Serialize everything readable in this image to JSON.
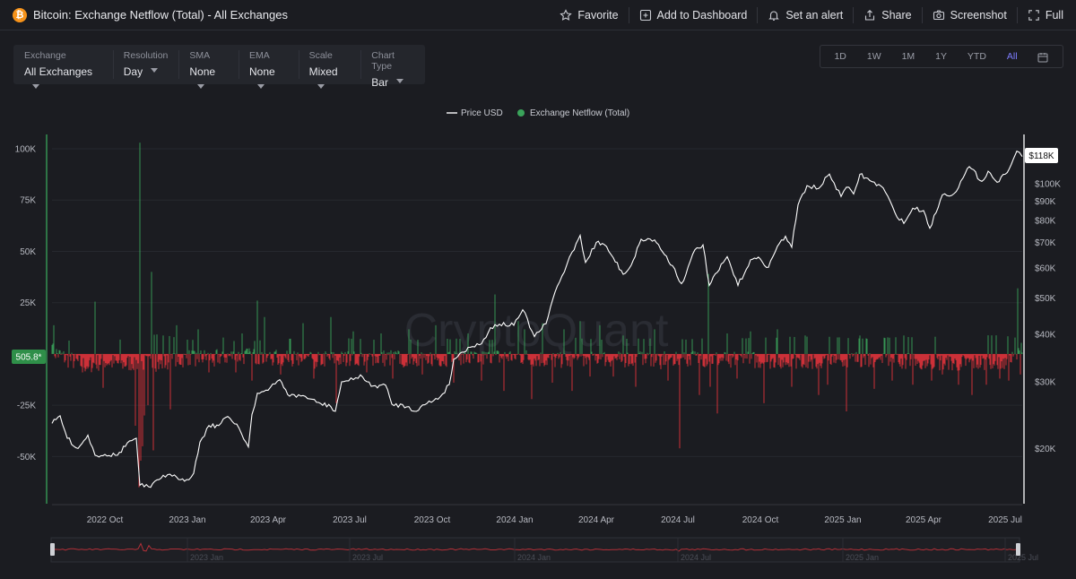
{
  "header": {
    "title": "Bitcoin: Exchange Netflow (Total) - All Exchanges",
    "coin_icon": "bitcoin-icon",
    "actions": [
      {
        "label": "Favorite",
        "icon": "star-icon"
      },
      {
        "label": "Add to Dashboard",
        "icon": "dashboard-add-icon"
      },
      {
        "label": "Set an alert",
        "icon": "bell-icon"
      },
      {
        "label": "Share",
        "icon": "share-icon"
      },
      {
        "label": "Screenshot",
        "icon": "camera-icon"
      },
      {
        "label": "Full",
        "icon": "fullscreen-icon"
      }
    ]
  },
  "filters": [
    {
      "label": "Exchange",
      "value": "All Exchanges"
    },
    {
      "label": "Resolution",
      "value": "Day"
    },
    {
      "label": "SMA",
      "value": "None"
    },
    {
      "label": "EMA",
      "value": "None"
    },
    {
      "label": "Scale",
      "value": "Mixed"
    },
    {
      "label": "Chart Type",
      "value": "Bar"
    }
  ],
  "ranges": {
    "items": [
      "1D",
      "1W",
      "1M",
      "1Y",
      "YTD",
      "All"
    ],
    "active": "All",
    "calendar_icon": "calendar-icon"
  },
  "colors": {
    "background": "#1b1c21",
    "price_line": "#ffffff",
    "inflow_bar": "#3aa35a",
    "outflow_bar": "#e0343b",
    "accent": "#7d7dff"
  },
  "chart_data": {
    "type": "bar",
    "legend": [
      {
        "name": "Price USD",
        "marker": "line",
        "color": "#ffffff"
      },
      {
        "name": "Exchange Netflow (Total)",
        "marker": "dot",
        "color": "#3aa35a"
      }
    ],
    "legend_position": "top-center",
    "watermark": "CryptoQuant",
    "x_ticks": [
      "2022 Oct",
      "2023 Jan",
      "2023 Apr",
      "2023 Jul",
      "2023 Oct",
      "2024 Jan",
      "2024 Apr",
      "2024 Jul",
      "2024 Oct",
      "2025 Jan",
      "2025 Apr",
      "2025 Jul"
    ],
    "x_range": [
      "2022-08-03",
      "2025-07-20"
    ],
    "left_axis": {
      "ticks": [
        100000,
        75000,
        50000,
        25000,
        -25000,
        -50000
      ],
      "tick_labels": [
        "100K",
        "75K",
        "50K",
        "25K",
        "-25K",
        "-50K"
      ],
      "range": [
        -73000,
        107000
      ]
    },
    "right_axis": {
      "scale": "log",
      "ticks": [
        100000,
        90000,
        80000,
        70000,
        60000,
        50000,
        40000,
        30000,
        20000
      ],
      "tick_labels": [
        "$100K",
        "$90K",
        "$80K",
        "$70K",
        "$60K",
        "$50K",
        "$40K",
        "$30K",
        "$20K"
      ],
      "range": [
        14300,
        135000
      ]
    },
    "last_values": {
      "netflow_label": "505.8*",
      "price_label": "$118K"
    },
    "series": [
      {
        "name": "Price USD",
        "axis": "right",
        "points": [
          [
            "2022-08-03",
            23300
          ],
          [
            "2022-08-12",
            24400
          ],
          [
            "2022-08-20",
            21300
          ],
          [
            "2022-09-01",
            20000
          ],
          [
            "2022-09-12",
            21700
          ],
          [
            "2022-09-20",
            19200
          ],
          [
            "2022-10-01",
            19300
          ],
          [
            "2022-10-15",
            19200
          ],
          [
            "2022-10-26",
            20700
          ],
          [
            "2022-11-05",
            21300
          ],
          [
            "2022-11-09",
            16000
          ],
          [
            "2022-11-21",
            15800
          ],
          [
            "2022-12-05",
            17000
          ],
          [
            "2022-12-20",
            16800
          ],
          [
            "2022-12-31",
            16550
          ],
          [
            "2023-01-08",
            17200
          ],
          [
            "2023-01-15",
            20800
          ],
          [
            "2023-01-25",
            23000
          ],
          [
            "2023-02-05",
            23000
          ],
          [
            "2023-02-15",
            24300
          ],
          [
            "2023-02-25",
            23200
          ],
          [
            "2023-03-10",
            20200
          ],
          [
            "2023-03-14",
            24600
          ],
          [
            "2023-03-20",
            28000
          ],
          [
            "2023-04-01",
            28500
          ],
          [
            "2023-04-14",
            30400
          ],
          [
            "2023-04-25",
            27500
          ],
          [
            "2023-05-10",
            27600
          ],
          [
            "2023-05-25",
            26500
          ],
          [
            "2023-06-10",
            25800
          ],
          [
            "2023-06-15",
            25100
          ],
          [
            "2023-06-22",
            30000
          ],
          [
            "2023-07-05",
            30400
          ],
          [
            "2023-07-13",
            31300
          ],
          [
            "2023-07-25",
            29200
          ],
          [
            "2023-08-10",
            29400
          ],
          [
            "2023-08-17",
            26200
          ],
          [
            "2023-09-05",
            25800
          ],
          [
            "2023-09-11",
            25100
          ],
          [
            "2023-09-25",
            26300
          ],
          [
            "2023-10-10",
            27400
          ],
          [
            "2023-10-20",
            29500
          ],
          [
            "2023-10-25",
            34400
          ],
          [
            "2023-11-10",
            37000
          ],
          [
            "2023-11-25",
            37800
          ],
          [
            "2023-12-05",
            41700
          ],
          [
            "2023-12-15",
            42600
          ],
          [
            "2023-12-31",
            42300
          ],
          [
            "2024-01-10",
            46500
          ],
          [
            "2024-01-23",
            39500
          ],
          [
            "2024-02-05",
            42700
          ],
          [
            "2024-02-15",
            51800
          ],
          [
            "2024-02-28",
            61000
          ],
          [
            "2024-03-05",
            66000
          ],
          [
            "2024-03-14",
            73100
          ],
          [
            "2024-03-20",
            62000
          ],
          [
            "2024-04-01",
            70000
          ],
          [
            "2024-04-10",
            69100
          ],
          [
            "2024-04-20",
            63800
          ],
          [
            "2024-05-01",
            57700
          ],
          [
            "2024-05-10",
            61000
          ],
          [
            "2024-05-21",
            71400
          ],
          [
            "2024-06-05",
            71100
          ],
          [
            "2024-06-25",
            60800
          ],
          [
            "2024-07-05",
            54500
          ],
          [
            "2024-07-10",
            57700
          ],
          [
            "2024-07-20",
            67000
          ],
          [
            "2024-07-29",
            69000
          ],
          [
            "2024-08-05",
            53900
          ],
          [
            "2024-08-25",
            64200
          ],
          [
            "2024-09-06",
            53900
          ],
          [
            "2024-09-20",
            63000
          ],
          [
            "2024-10-01",
            63300
          ],
          [
            "2024-10-10",
            60200
          ],
          [
            "2024-10-20",
            68400
          ],
          [
            "2024-10-29",
            72700
          ],
          [
            "2024-11-05",
            68000
          ],
          [
            "2024-11-12",
            88000
          ],
          [
            "2024-11-22",
            98900
          ],
          [
            "2024-12-05",
            97200
          ],
          [
            "2024-12-17",
            106100
          ],
          [
            "2024-12-30",
            92600
          ],
          [
            "2025-01-05",
            98000
          ],
          [
            "2025-01-13",
            94000
          ],
          [
            "2025-01-20",
            106000
          ],
          [
            "2025-01-31",
            102000
          ],
          [
            "2025-02-15",
            97500
          ],
          [
            "2025-02-28",
            84000
          ],
          [
            "2025-03-10",
            78600
          ],
          [
            "2025-03-20",
            86200
          ],
          [
            "2025-04-01",
            85000
          ],
          [
            "2025-04-08",
            76300
          ],
          [
            "2025-04-22",
            93500
          ],
          [
            "2025-05-05",
            94200
          ],
          [
            "2025-05-15",
            103600
          ],
          [
            "2025-05-22",
            111000
          ],
          [
            "2025-06-05",
            101500
          ],
          [
            "2025-06-12",
            108000
          ],
          [
            "2025-06-22",
            100900
          ],
          [
            "2025-07-01",
            106000
          ],
          [
            "2025-07-10",
            116000
          ],
          [
            "2025-07-14",
            122000
          ],
          [
            "2025-07-20",
            118000
          ]
        ]
      },
      {
        "name": "Exchange Netflow (Total)",
        "axis": "left",
        "base_points": [
          [
            "2022-08-03",
            1500
          ],
          [
            "2022-08-20",
            -2500
          ],
          [
            "2022-09-10",
            -5500
          ],
          [
            "2022-10-01",
            -3500
          ],
          [
            "2022-10-20",
            -5000
          ],
          [
            "2022-11-01",
            -4000
          ],
          [
            "2022-12-01",
            -5000
          ],
          [
            "2023-01-01",
            -2000
          ],
          [
            "2023-02-01",
            -1500
          ],
          [
            "2023-03-01",
            -1000
          ],
          [
            "2023-04-01",
            -1500
          ],
          [
            "2023-05-01",
            -2500
          ],
          [
            "2023-06-01",
            -2500
          ],
          [
            "2023-07-01",
            -2500
          ],
          [
            "2023-08-01",
            -2000
          ],
          [
            "2023-09-01",
            -2000
          ],
          [
            "2023-10-01",
            -2000
          ],
          [
            "2023-11-01",
            -2500
          ],
          [
            "2023-12-01",
            -2000
          ],
          [
            "2024-01-01",
            -1000
          ],
          [
            "2024-02-01",
            -2500
          ],
          [
            "2024-03-01",
            -3500
          ],
          [
            "2024-04-01",
            -2000
          ],
          [
            "2024-05-01",
            -2500
          ],
          [
            "2024-06-01",
            -2500
          ],
          [
            "2024-07-01",
            -2000
          ],
          [
            "2024-08-01",
            -2500
          ],
          [
            "2024-09-01",
            -2500
          ],
          [
            "2024-10-01",
            -3000
          ],
          [
            "2024-11-01",
            -3500
          ],
          [
            "2024-12-01",
            -4000
          ],
          [
            "2025-01-01",
            -3000
          ],
          [
            "2025-02-01",
            -2500
          ],
          [
            "2025-03-01",
            -3500
          ],
          [
            "2025-04-01",
            -3500
          ],
          [
            "2025-05-01",
            -4500
          ],
          [
            "2025-06-01",
            -4000
          ],
          [
            "2025-07-01",
            -5000
          ],
          [
            "2025-07-20",
            500
          ]
        ],
        "spikes": [
          [
            "2022-08-05",
            14000
          ],
          [
            "2022-08-22",
            6500
          ],
          [
            "2022-09-06",
            -9000
          ],
          [
            "2022-09-20",
            25500
          ],
          [
            "2022-09-29",
            -16500
          ],
          [
            "2022-10-18",
            7000
          ],
          [
            "2022-11-04",
            -35000
          ],
          [
            "2022-11-08",
            -65000
          ],
          [
            "2022-11-09",
            103000
          ],
          [
            "2022-11-10",
            -52000
          ],
          [
            "2022-11-12",
            -45000
          ],
          [
            "2022-11-14",
            -30000
          ],
          [
            "2022-11-18",
            -25000
          ],
          [
            "2022-11-22",
            40000
          ],
          [
            "2022-11-24",
            -47000
          ],
          [
            "2022-12-05",
            9000
          ],
          [
            "2022-12-13",
            -27000
          ],
          [
            "2022-12-20",
            14000
          ],
          [
            "2023-01-13",
            12000
          ],
          [
            "2023-01-25",
            -9000
          ],
          [
            "2023-02-10",
            8000
          ],
          [
            "2023-02-24",
            -9000
          ],
          [
            "2023-03-03",
            10000
          ],
          [
            "2023-03-14",
            -13000
          ],
          [
            "2023-03-20",
            26000
          ],
          [
            "2023-03-28",
            18000
          ],
          [
            "2023-04-15",
            -10000
          ],
          [
            "2023-05-10",
            15000
          ],
          [
            "2023-05-22",
            -12000
          ],
          [
            "2023-06-10",
            18000
          ],
          [
            "2023-06-16",
            -24000
          ],
          [
            "2023-07-05",
            11000
          ],
          [
            "2023-07-20",
            -9000
          ],
          [
            "2023-08-05",
            10000
          ],
          [
            "2023-08-18",
            -12000
          ],
          [
            "2023-09-05",
            12000
          ],
          [
            "2023-09-20",
            -10000
          ],
          [
            "2023-10-05",
            14000
          ],
          [
            "2023-10-25",
            -14000
          ],
          [
            "2023-11-10",
            10000
          ],
          [
            "2023-11-25",
            -13000
          ],
          [
            "2023-12-10",
            29000
          ],
          [
            "2023-12-20",
            -18000
          ],
          [
            "2024-01-05",
            16000
          ],
          [
            "2024-01-12",
            12000
          ],
          [
            "2024-01-20",
            -22000
          ],
          [
            "2024-02-01",
            15000
          ],
          [
            "2024-02-12",
            -14000
          ],
          [
            "2024-02-25",
            12000
          ],
          [
            "2024-03-05",
            -18000
          ],
          [
            "2024-03-14",
            16000
          ],
          [
            "2024-03-25",
            -11000
          ],
          [
            "2024-04-05",
            14000
          ],
          [
            "2024-04-20",
            -11000
          ],
          [
            "2024-05-01",
            9000
          ],
          [
            "2024-05-15",
            -16000
          ],
          [
            "2024-06-05",
            12000
          ],
          [
            "2024-06-20",
            -13000
          ],
          [
            "2024-07-03",
            -46000
          ],
          [
            "2024-07-10",
            7000
          ],
          [
            "2024-07-25",
            -20000
          ],
          [
            "2024-08-04",
            39000
          ],
          [
            "2024-08-06",
            -16000
          ],
          [
            "2024-08-14",
            -29000
          ],
          [
            "2024-08-25",
            10000
          ],
          [
            "2024-09-05",
            -12000
          ],
          [
            "2024-09-20",
            11000
          ],
          [
            "2024-10-05",
            -24000
          ],
          [
            "2024-10-20",
            12000
          ],
          [
            "2024-11-05",
            -16000
          ],
          [
            "2024-11-20",
            9000
          ],
          [
            "2024-12-05",
            -20000
          ],
          [
            "2024-12-15",
            -15000
          ],
          [
            "2025-01-05",
            -28000
          ],
          [
            "2025-01-20",
            9000
          ],
          [
            "2025-02-05",
            -17000
          ],
          [
            "2025-02-25",
            -13000
          ],
          [
            "2025-03-10",
            9000
          ],
          [
            "2025-03-20",
            -15000
          ],
          [
            "2025-04-10",
            -13000
          ],
          [
            "2025-04-22",
            -10000
          ],
          [
            "2025-05-10",
            -15000
          ],
          [
            "2025-05-25",
            -20000
          ],
          [
            "2025-06-10",
            -15000
          ],
          [
            "2025-06-25",
            -12000
          ],
          [
            "2025-07-05",
            -13000
          ],
          [
            "2025-07-12",
            8000
          ],
          [
            "2025-07-15",
            32000
          ],
          [
            "2025-07-18",
            -10000
          ]
        ]
      }
    ]
  },
  "navigator": {
    "labels": [
      "2023 Jan",
      "2023 Jul",
      "2024 Jan",
      "2024 Jul",
      "2025 Jan",
      "2025 Jul"
    ]
  }
}
